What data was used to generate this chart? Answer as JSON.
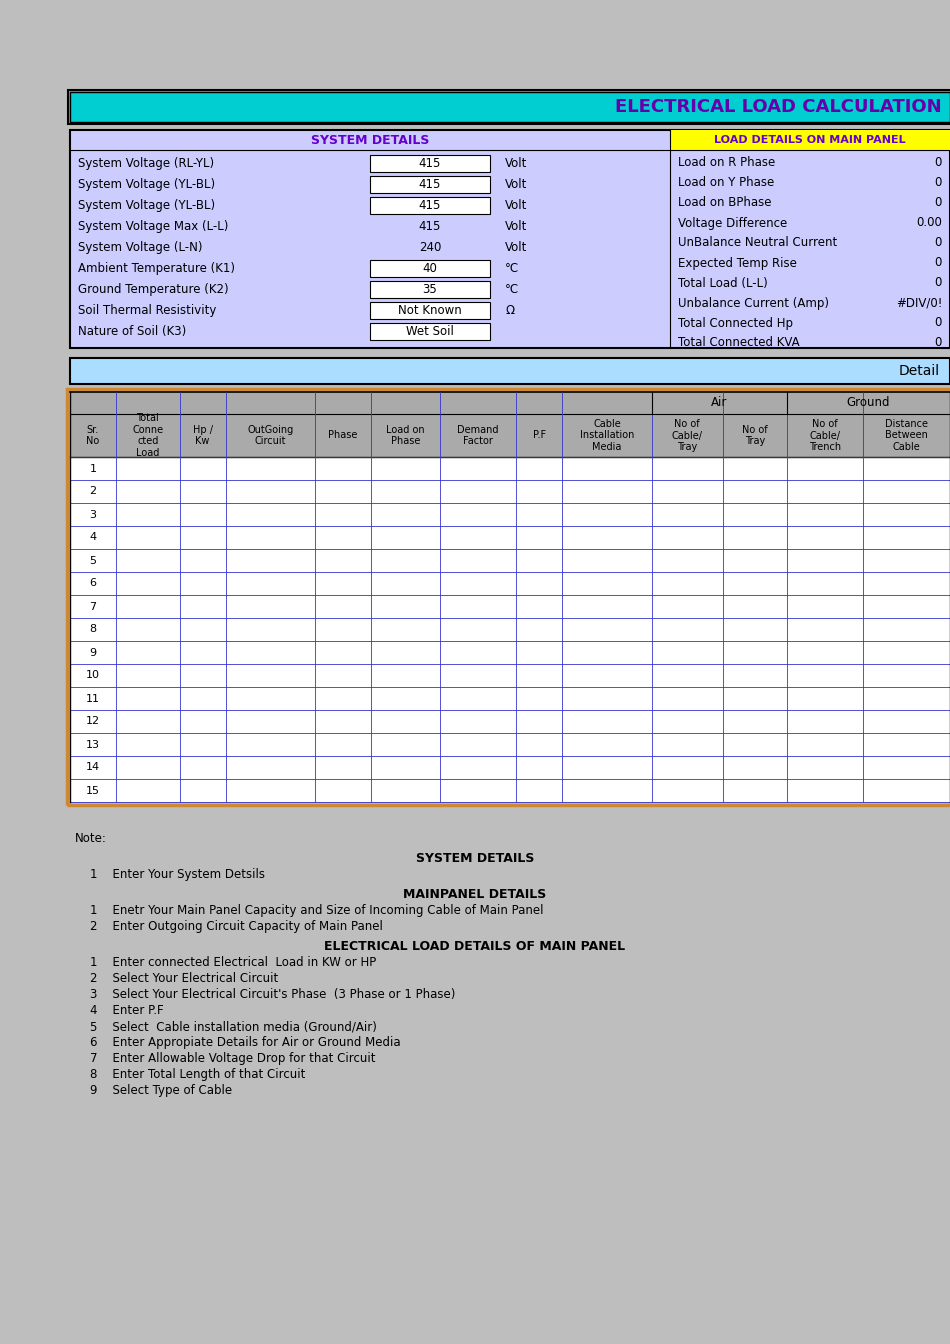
{
  "title": "ELECTRICAL LOAD CALCULATION",
  "title_bg": "#00CED1",
  "title_color": "#6600AA",
  "system_details_header": "SYSTEM DETAILS",
  "load_details_header": "LOAD DETAILS ON MAIN PANEL",
  "system_rows": [
    {
      "label": "System Voltage (RL-YL)",
      "value": "415",
      "unit": "Volt",
      "has_box": true
    },
    {
      "label": "System Voltage (YL-BL)",
      "value": "415",
      "unit": "Volt",
      "has_box": true
    },
    {
      "label": "System Voltage (YL-BL)",
      "value": "415",
      "unit": "Volt",
      "has_box": true
    },
    {
      "label": "System Voltage Max (L-L)",
      "value": "415",
      "unit": "Volt",
      "has_box": false
    },
    {
      "label": "System Voltage (L-N)",
      "value": "240",
      "unit": "Volt",
      "has_box": false
    },
    {
      "label": "Ambient Temperature (K1)",
      "value": "40",
      "unit": "°C",
      "has_box": true
    },
    {
      "label": "Ground Temperature (K2)",
      "value": "35",
      "unit": "°C",
      "has_box": true
    },
    {
      "label": "Soil Thermal Resistivity",
      "value": "Not Known",
      "unit": "Ω",
      "has_box": true
    },
    {
      "label": "Nature of Soil (K3)",
      "value": "Wet Soil",
      "unit": "",
      "has_box": true
    }
  ],
  "load_rows": [
    {
      "label": "Load on R Phase",
      "value": "0"
    },
    {
      "label": "Load on Y Phase",
      "value": "0"
    },
    {
      "label": "Load on BPhase",
      "value": "0"
    },
    {
      "label": "Voltage Difference",
      "value": "0.00"
    },
    {
      "label": "UnBalance Neutral Current",
      "value": "0"
    },
    {
      "label": "Expected Temp Rise",
      "value": "0"
    },
    {
      "label": "Total Load (L-L)",
      "value": "0"
    },
    {
      "label": "Unbalance Current (Amp)",
      "value": "#DIV/0!"
    },
    {
      "label": "Total Connected Hp",
      "value": "0"
    },
    {
      "label": "Total Connected KVA",
      "value": "0"
    }
  ],
  "detail_header": "Detail",
  "num_rows": 15,
  "bg_color": "#BEBEBE",
  "panel_bg": "#CCCCFF",
  "header_text_color": "#6600CC",
  "load_header_bg": "#FFFF00",
  "table_header_bg": "#AAAAAA",
  "table_border_color": "#3333CC",
  "table_outer_border": "#CC8833",
  "detail_bar_bg": "#AADDFF",
  "white": "#FFFFFF",
  "black": "#000000"
}
